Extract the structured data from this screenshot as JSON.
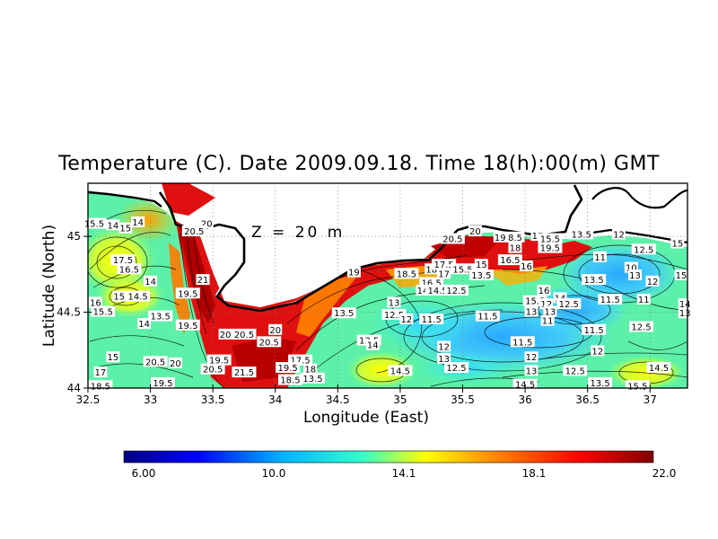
{
  "title": "Temperature (C). Date 2009.09.18. Time 18(h):00(m) GMT",
  "annotation": "Z = 20 m",
  "x_axis": {
    "label": "Longitude (East)",
    "ticks": [
      "32.5",
      "33",
      "33.5",
      "34",
      "34.5",
      "35",
      "35.5",
      "36",
      "36.5",
      "37"
    ]
  },
  "y_axis": {
    "label": "Latitude (North)",
    "ticks": [
      "44",
      "44.5",
      "45"
    ]
  },
  "colorbar": {
    "labels": [
      "6.00",
      "10.0",
      "14.1",
      "18.1",
      "22.0"
    ],
    "colors": [
      "#00007f",
      "#0000ff",
      "#00b4ff",
      "#33ffcc",
      "#ffff00",
      "#ff8000",
      "#ff0000",
      "#7f0000"
    ]
  },
  "map_data": {
    "lon_range": [
      32.5,
      37.3
    ],
    "lat_range": [
      44.0,
      45.35
    ],
    "grid": true,
    "contour_labels": [
      {
        "text": "15.5",
        "lon": 32.55,
        "lat": 45.08
      },
      {
        "text": "14",
        "lon": 32.7,
        "lat": 45.07
      },
      {
        "text": "15",
        "lon": 32.8,
        "lat": 45.05
      },
      {
        "text": "14",
        "lon": 32.9,
        "lat": 45.09
      },
      {
        "text": "17.5",
        "lon": 32.78,
        "lat": 44.84
      },
      {
        "text": "16.5",
        "lon": 32.83,
        "lat": 44.78
      },
      {
        "text": "14",
        "lon": 33.0,
        "lat": 44.7
      },
      {
        "text": "15",
        "lon": 32.75,
        "lat": 44.6
      },
      {
        "text": "14.5",
        "lon": 32.9,
        "lat": 44.6
      },
      {
        "text": "16",
        "lon": 32.56,
        "lat": 44.56
      },
      {
        "text": "15.5",
        "lon": 32.62,
        "lat": 44.5
      },
      {
        "text": "13.5",
        "lon": 33.08,
        "lat": 44.47
      },
      {
        "text": "14",
        "lon": 32.95,
        "lat": 44.42
      },
      {
        "text": "19.5",
        "lon": 33.3,
        "lat": 44.62
      },
      {
        "text": "19.5",
        "lon": 33.3,
        "lat": 44.41
      },
      {
        "text": "20",
        "lon": 33.45,
        "lat": 45.08
      },
      {
        "text": "20.5",
        "lon": 33.35,
        "lat": 45.03
      },
      {
        "text": "21",
        "lon": 33.42,
        "lat": 44.71
      },
      {
        "text": "20",
        "lon": 33.6,
        "lat": 44.35
      },
      {
        "text": "20.5",
        "lon": 33.75,
        "lat": 44.35
      },
      {
        "text": "20.5",
        "lon": 33.95,
        "lat": 44.3
      },
      {
        "text": "20",
        "lon": 34.0,
        "lat": 44.38
      },
      {
        "text": "20.5",
        "lon": 33.04,
        "lat": 44.17
      },
      {
        "text": "20",
        "lon": 33.2,
        "lat": 44.16
      },
      {
        "text": "19.5",
        "lon": 33.55,
        "lat": 44.18
      },
      {
        "text": "20.5",
        "lon": 33.5,
        "lat": 44.12
      },
      {
        "text": "21.5",
        "lon": 33.75,
        "lat": 44.1
      },
      {
        "text": "19.5",
        "lon": 33.1,
        "lat": 44.03
      },
      {
        "text": "17",
        "lon": 32.6,
        "lat": 44.1
      },
      {
        "text": "15",
        "lon": 32.7,
        "lat": 44.2
      },
      {
        "text": "18.5",
        "lon": 32.6,
        "lat": 44.01
      },
      {
        "text": "17.5",
        "lon": 34.2,
        "lat": 44.18
      },
      {
        "text": "19.5",
        "lon": 34.1,
        "lat": 44.13
      },
      {
        "text": "18",
        "lon": 34.28,
        "lat": 44.12
      },
      {
        "text": "13.5",
        "lon": 34.3,
        "lat": 44.06
      },
      {
        "text": "18.5",
        "lon": 34.12,
        "lat": 44.05
      },
      {
        "text": "19",
        "lon": 34.63,
        "lat": 44.76
      },
      {
        "text": "13.5",
        "lon": 34.55,
        "lat": 44.49
      },
      {
        "text": "13.5",
        "lon": 34.75,
        "lat": 44.31
      },
      {
        "text": "14",
        "lon": 34.78,
        "lat": 44.28
      },
      {
        "text": "12.5",
        "lon": 34.95,
        "lat": 44.48
      },
      {
        "text": "13",
        "lon": 34.95,
        "lat": 44.56
      },
      {
        "text": "12",
        "lon": 35.05,
        "lat": 44.45
      },
      {
        "text": "14.5",
        "lon": 35.0,
        "lat": 44.11
      },
      {
        "text": "18.5",
        "lon": 35.05,
        "lat": 44.75
      },
      {
        "text": "18",
        "lon": 35.25,
        "lat": 44.78
      },
      {
        "text": "17.5",
        "lon": 35.35,
        "lat": 44.81
      },
      {
        "text": "17",
        "lon": 35.35,
        "lat": 44.75
      },
      {
        "text": "16.5",
        "lon": 35.25,
        "lat": 44.69
      },
      {
        "text": "14",
        "lon": 35.18,
        "lat": 44.64
      },
      {
        "text": "14.5",
        "lon": 35.3,
        "lat": 44.64
      },
      {
        "text": "12.5",
        "lon": 35.45,
        "lat": 44.64
      },
      {
        "text": "15.5",
        "lon": 35.5,
        "lat": 44.78
      },
      {
        "text": "15",
        "lon": 35.65,
        "lat": 44.81
      },
      {
        "text": "13.5",
        "lon": 35.65,
        "lat": 44.74
      },
      {
        "text": "11.5",
        "lon": 35.25,
        "lat": 44.45
      },
      {
        "text": "11.5",
        "lon": 35.7,
        "lat": 44.47
      },
      {
        "text": "12",
        "lon": 35.35,
        "lat": 44.27
      },
      {
        "text": "13",
        "lon": 35.35,
        "lat": 44.19
      },
      {
        "text": "12.5",
        "lon": 35.45,
        "lat": 44.13
      },
      {
        "text": "20.5",
        "lon": 35.42,
        "lat": 44.98
      },
      {
        "text": "20",
        "lon": 35.6,
        "lat": 45.03
      },
      {
        "text": "19",
        "lon": 35.8,
        "lat": 44.99
      },
      {
        "text": "8.5",
        "lon": 35.92,
        "lat": 44.99
      },
      {
        "text": "17",
        "lon": 36.1,
        "lat": 45.0
      },
      {
        "text": "15.5",
        "lon": 36.2,
        "lat": 44.98
      },
      {
        "text": "18",
        "lon": 35.92,
        "lat": 44.92
      },
      {
        "text": "19.5",
        "lon": 36.2,
        "lat": 44.92
      },
      {
        "text": "16.5",
        "lon": 35.88,
        "lat": 44.84
      },
      {
        "text": "16",
        "lon": 36.01,
        "lat": 44.8
      },
      {
        "text": "13.5",
        "lon": 36.45,
        "lat": 45.01
      },
      {
        "text": "12",
        "lon": 36.75,
        "lat": 45.01
      },
      {
        "text": "11",
        "lon": 36.6,
        "lat": 44.86
      },
      {
        "text": "12.5",
        "lon": 36.95,
        "lat": 44.91
      },
      {
        "text": "15",
        "lon": 37.22,
        "lat": 44.95
      },
      {
        "text": "10",
        "lon": 36.85,
        "lat": 44.79
      },
      {
        "text": "13",
        "lon": 36.88,
        "lat": 44.74
      },
      {
        "text": "12",
        "lon": 37.02,
        "lat": 44.7
      },
      {
        "text": "15",
        "lon": 37.25,
        "lat": 44.74
      },
      {
        "text": "13.5",
        "lon": 36.55,
        "lat": 44.71
      },
      {
        "text": "16",
        "lon": 36.15,
        "lat": 44.64
      },
      {
        "text": "15.5",
        "lon": 36.08,
        "lat": 44.57
      },
      {
        "text": "12",
        "lon": 36.17,
        "lat": 44.55
      },
      {
        "text": "14",
        "lon": 36.28,
        "lat": 44.59
      },
      {
        "text": "13",
        "lon": 36.2,
        "lat": 44.5
      },
      {
        "text": "12.5",
        "lon": 36.35,
        "lat": 44.55
      },
      {
        "text": "11.5",
        "lon": 36.68,
        "lat": 44.58
      },
      {
        "text": "11",
        "lon": 36.95,
        "lat": 44.58
      },
      {
        "text": "13",
        "lon": 36.05,
        "lat": 44.5
      },
      {
        "text": "11",
        "lon": 36.18,
        "lat": 44.44
      },
      {
        "text": "11.5",
        "lon": 35.98,
        "lat": 44.3
      },
      {
        "text": "11.5",
        "lon": 36.55,
        "lat": 44.38
      },
      {
        "text": "12.5",
        "lon": 36.93,
        "lat": 44.4
      },
      {
        "text": "12",
        "lon": 36.58,
        "lat": 44.24
      },
      {
        "text": "12",
        "lon": 36.05,
        "lat": 44.2
      },
      {
        "text": "13",
        "lon": 36.05,
        "lat": 44.11
      },
      {
        "text": "12.5",
        "lon": 36.4,
        "lat": 44.11
      },
      {
        "text": "14.5",
        "lon": 37.07,
        "lat": 44.13
      },
      {
        "text": "13.5",
        "lon": 36.6,
        "lat": 44.03
      },
      {
        "text": "14.5",
        "lon": 36.0,
        "lat": 44.02
      },
      {
        "text": "15.5",
        "lon": 36.9,
        "lat": 44.01
      },
      {
        "text": "14",
        "lon": 37.28,
        "lat": 44.55
      },
      {
        "text": "13",
        "lon": 37.28,
        "lat": 44.49
      }
    ]
  }
}
